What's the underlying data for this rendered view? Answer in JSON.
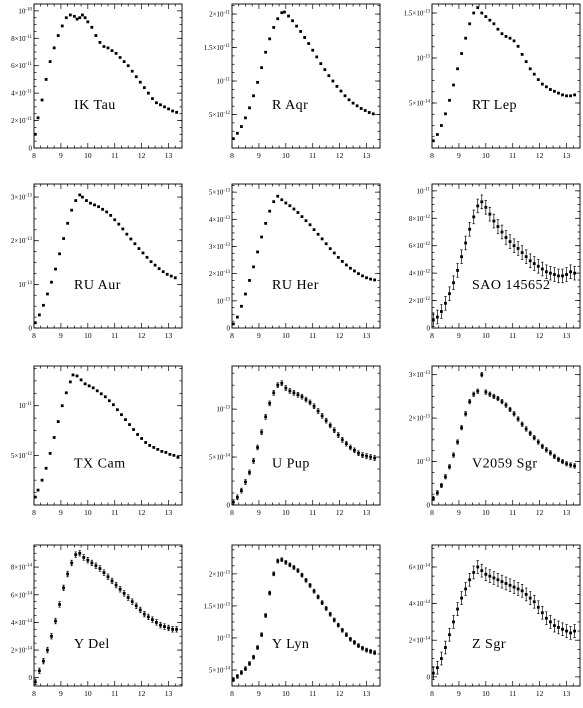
{
  "chart_data": [
    {
      "type": "scatter",
      "name": "IK Tau",
      "xlim": [
        8,
        13.5
      ],
      "ylim": [
        0,
        1.05e-10
      ],
      "xticks": [
        8,
        9,
        10,
        11,
        12,
        13
      ],
      "yticks": [
        0,
        2e-11,
        4e-11,
        6e-11,
        8e-11,
        1e-10
      ],
      "ytick_labels": [
        "0",
        "2×10⁻¹¹",
        "4×10⁻¹¹",
        "6×10⁻¹¹",
        "8×10⁻¹¹",
        "10⁻¹⁰"
      ],
      "err": 0,
      "x": [
        8.05,
        8.15,
        8.3,
        8.45,
        8.6,
        8.75,
        8.9,
        9.05,
        9.2,
        9.35,
        9.5,
        9.6,
        9.7,
        9.8,
        9.9,
        10.0,
        10.15,
        10.3,
        10.45,
        10.6,
        10.75,
        10.9,
        11.05,
        11.2,
        11.35,
        11.5,
        11.65,
        11.8,
        11.95,
        12.1,
        12.25,
        12.4,
        12.55,
        12.7,
        12.85,
        13.0,
        13.15,
        13.3
      ],
      "y": [
        1e-11,
        2.2e-11,
        3.5e-11,
        5e-11,
        6.3e-11,
        7.3e-11,
        8.2e-11,
        8.9e-11,
        9.5e-11,
        9.7e-11,
        9.6e-11,
        9.4e-11,
        9.5e-11,
        9.7e-11,
        9.5e-11,
        9.2e-11,
        8.8e-11,
        8.2e-11,
        7.7e-11,
        7.4e-11,
        7.3e-11,
        7.1e-11,
        6.9e-11,
        6.6e-11,
        6.3e-11,
        6e-11,
        5.6e-11,
        5.2e-11,
        4.8e-11,
        4.4e-11,
        4e-11,
        3.6e-11,
        3.3e-11,
        3.15e-11,
        3e-11,
        2.85e-11,
        2.7e-11,
        2.6e-11
      ]
    },
    {
      "type": "scatter",
      "name": "R Aqr",
      "xlim": [
        8,
        13.5
      ],
      "ylim": [
        0,
        2.15e-11
      ],
      "xticks": [
        8,
        9,
        10,
        11,
        12,
        13
      ],
      "yticks": [
        5e-12,
        1e-11,
        1.5e-11,
        2e-11
      ],
      "ytick_labels": [
        "5×10⁻¹²",
        "10⁻¹¹",
        "1.5×10⁻¹¹",
        "2×10⁻¹¹"
      ],
      "err": 0,
      "x": [
        8.05,
        8.2,
        8.35,
        8.5,
        8.65,
        8.8,
        8.95,
        9.1,
        9.25,
        9.4,
        9.55,
        9.7,
        9.85,
        9.95,
        10.1,
        10.25,
        10.4,
        10.55,
        10.7,
        10.85,
        11.0,
        11.15,
        11.3,
        11.45,
        11.6,
        11.75,
        11.9,
        12.05,
        12.2,
        12.35,
        12.5,
        12.65,
        12.8,
        12.95,
        13.1,
        13.25
      ],
      "y": [
        1.4e-12,
        2.2e-12,
        3.2e-12,
        4.5e-12,
        6e-12,
        7.8e-12,
        9.8e-12,
        1.2e-11,
        1.43e-11,
        1.63e-11,
        1.8e-11,
        1.93e-11,
        2.02e-11,
        2.03e-11,
        1.97e-11,
        1.9e-11,
        1.82e-11,
        1.74e-11,
        1.65e-11,
        1.56e-11,
        1.46e-11,
        1.36e-11,
        1.26e-11,
        1.17e-11,
        1.08e-11,
        1e-11,
        9.2e-12,
        8.5e-12,
        7.8e-12,
        7.2e-12,
        6.7e-12,
        6.3e-12,
        5.9e-12,
        5.6e-12,
        5.3e-12,
        5.1e-12
      ]
    },
    {
      "type": "scatter",
      "name": "RT Lep",
      "xlim": [
        8,
        13.5
      ],
      "ylim": [
        0,
        1.6e-13
      ],
      "xticks": [
        8,
        9,
        10,
        11,
        12,
        13
      ],
      "yticks": [
        5e-14,
        1e-13,
        1.5e-13
      ],
      "ytick_labels": [
        "5×10⁻¹⁴",
        "10⁻¹³",
        "1.5×10⁻¹³"
      ],
      "err": 0,
      "x": [
        8.05,
        8.2,
        8.35,
        8.5,
        8.65,
        8.8,
        8.95,
        9.1,
        9.25,
        9.4,
        9.55,
        9.7,
        9.85,
        10.0,
        10.15,
        10.3,
        10.45,
        10.6,
        10.75,
        10.9,
        11.05,
        11.2,
        11.35,
        11.5,
        11.65,
        11.8,
        11.95,
        12.1,
        12.25,
        12.4,
        12.55,
        12.7,
        12.85,
        13.0,
        13.15,
        13.3
      ],
      "y": [
        8e-15,
        1.5e-14,
        2.5e-14,
        3.8e-14,
        5.3e-14,
        7e-14,
        8.8e-14,
        1.05e-13,
        1.22e-13,
        1.38e-13,
        1.5e-13,
        1.56e-13,
        1.5e-13,
        1.46e-13,
        1.42e-13,
        1.38e-13,
        1.32e-13,
        1.27e-13,
        1.24e-13,
        1.22e-13,
        1.19e-13,
        1.13e-13,
        1.04e-13,
        9.6e-14,
        8.8e-14,
        8.2e-14,
        7.6e-14,
        7.1e-14,
        6.8e-14,
        6.5e-14,
        6.3e-14,
        6.1e-14,
        5.9e-14,
        5.8e-14,
        5.8e-14,
        5.9e-14
      ]
    },
    {
      "type": "scatter",
      "name": "RU Aur",
      "xlim": [
        8,
        13.5
      ],
      "ylim": [
        0,
        3.3e-13
      ],
      "xticks": [
        8,
        9,
        10,
        11,
        12,
        13
      ],
      "yticks": [
        0,
        1e-13,
        2e-13,
        3e-13
      ],
      "ytick_labels": [
        "0",
        "10⁻¹³",
        "2×10⁻¹³",
        "3×10⁻¹³"
      ],
      "err": 0,
      "x": [
        8.05,
        8.2,
        8.35,
        8.5,
        8.65,
        8.8,
        8.95,
        9.1,
        9.25,
        9.4,
        9.55,
        9.7,
        9.8,
        9.95,
        10.1,
        10.25,
        10.4,
        10.55,
        10.7,
        10.85,
        11.0,
        11.15,
        11.3,
        11.45,
        11.6,
        11.75,
        11.9,
        12.05,
        12.2,
        12.35,
        12.5,
        12.65,
        12.8,
        12.95,
        13.1,
        13.25
      ],
      "y": [
        1.2e-14,
        3e-14,
        5.2e-14,
        7.8e-14,
        1.05e-13,
        1.35e-13,
        1.7e-13,
        2.05e-13,
        2.4e-13,
        2.7e-13,
        2.92e-13,
        3.05e-13,
        3e-13,
        2.92e-13,
        2.86e-13,
        2.82e-13,
        2.78e-13,
        2.72e-13,
        2.66e-13,
        2.58e-13,
        2.48e-13,
        2.38e-13,
        2.27e-13,
        2.15e-13,
        2.04e-13,
        1.93e-13,
        1.82e-13,
        1.72e-13,
        1.62e-13,
        1.52e-13,
        1.44e-13,
        1.36e-13,
        1.29e-13,
        1.23e-13,
        1.19e-13,
        1.15e-13
      ]
    },
    {
      "type": "scatter",
      "name": "RU Her",
      "xlim": [
        8,
        13.5
      ],
      "ylim": [
        0,
        5.3e-13
      ],
      "xticks": [
        8,
        9,
        10,
        11,
        12,
        13
      ],
      "yticks": [
        0,
        1e-13,
        2e-13,
        3e-13,
        4e-13,
        5e-13
      ],
      "ytick_labels": [
        "0",
        "10⁻¹³",
        "2×10⁻¹³",
        "3×10⁻¹³",
        "4×10⁻¹³",
        "5×10⁻¹³"
      ],
      "err": 0,
      "x": [
        8.05,
        8.2,
        8.35,
        8.5,
        8.65,
        8.8,
        8.95,
        9.1,
        9.25,
        9.4,
        9.55,
        9.7,
        9.85,
        10.0,
        10.15,
        10.3,
        10.45,
        10.6,
        10.75,
        10.9,
        11.05,
        11.2,
        11.35,
        11.5,
        11.65,
        11.8,
        11.95,
        12.1,
        12.25,
        12.4,
        12.55,
        12.7,
        12.85,
        13.0,
        13.15,
        13.3
      ],
      "y": [
        1.5e-14,
        4e-14,
        8e-14,
        1.25e-13,
        1.75e-13,
        2.25e-13,
        2.8e-13,
        3.35e-13,
        3.85e-13,
        4.3e-13,
        4.65e-13,
        4.85e-13,
        4.72e-13,
        4.6e-13,
        4.5e-13,
        4.38e-13,
        4.25e-13,
        4.1e-13,
        3.95e-13,
        3.8e-13,
        3.62e-13,
        3.45e-13,
        3.28e-13,
        3.1e-13,
        2.92e-13,
        2.76e-13,
        2.6e-13,
        2.45e-13,
        2.32e-13,
        2.2e-13,
        2.1e-13,
        2e-13,
        1.92e-13,
        1.85e-13,
        1.8e-13,
        1.77e-13
      ]
    },
    {
      "type": "scatter",
      "name": "SAO 145652",
      "xlim": [
        8,
        13.5
      ],
      "ylim": [
        0,
        1.05e-11
      ],
      "xticks": [
        8,
        9,
        10,
        11,
        12,
        13
      ],
      "yticks": [
        0,
        2e-12,
        4e-12,
        6e-12,
        8e-12,
        1e-11
      ],
      "ytick_labels": [
        "0",
        "2×10⁻¹²",
        "4×10⁻¹²",
        "6×10⁻¹²",
        "8×10⁻¹²",
        "10⁻¹¹"
      ],
      "err": 5e-13,
      "x": [
        8.05,
        8.2,
        8.35,
        8.5,
        8.65,
        8.8,
        8.95,
        9.1,
        9.25,
        9.4,
        9.55,
        9.7,
        9.85,
        10.0,
        10.15,
        10.3,
        10.45,
        10.6,
        10.75,
        10.9,
        11.05,
        11.2,
        11.35,
        11.5,
        11.65,
        11.8,
        11.95,
        12.1,
        12.25,
        12.4,
        12.55,
        12.7,
        12.85,
        13.0,
        13.15,
        13.3
      ],
      "y": [
        6e-13,
        8e-13,
        1.2e-12,
        1.8e-12,
        2.5e-12,
        3.3e-12,
        4.2e-12,
        5.2e-12,
        6.2e-12,
        7.2e-12,
        8.1e-12,
        8.9e-12,
        9.2e-12,
        8.8e-12,
        8.3e-12,
        7.8e-12,
        7.4e-12,
        7e-12,
        6.6e-12,
        6.3e-12,
        6e-12,
        5.8e-12,
        5.5e-12,
        5.2e-12,
        4.9e-12,
        4.7e-12,
        4.5e-12,
        4.3e-12,
        4.1e-12,
        4e-12,
        3.9e-12,
        3.8e-12,
        3.8e-12,
        3.9e-12,
        4.1e-12,
        4e-12
      ]
    },
    {
      "type": "scatter",
      "name": "TX Cam",
      "xlim": [
        8,
        13.5
      ],
      "ylim": [
        0,
        1.4e-11
      ],
      "xticks": [
        8,
        9,
        10,
        11,
        12,
        13
      ],
      "yticks": [
        5e-12,
        1e-11
      ],
      "ytick_labels": [
        "5×10⁻¹²",
        "10⁻¹¹"
      ],
      "err": 0,
      "x": [
        8.05,
        8.15,
        8.3,
        8.45,
        8.6,
        8.75,
        8.9,
        9.05,
        9.2,
        9.35,
        9.45,
        9.6,
        9.75,
        9.9,
        10.05,
        10.2,
        10.35,
        10.5,
        10.65,
        10.8,
        10.95,
        11.1,
        11.25,
        11.4,
        11.55,
        11.7,
        11.85,
        12.0,
        12.15,
        12.3,
        12.45,
        12.6,
        12.75,
        12.9,
        13.05,
        13.2,
        13.35
      ],
      "y": [
        8e-13,
        1.5e-12,
        2.5e-12,
        3.7e-12,
        5.2e-12,
        6.8e-12,
        8.4e-12,
        1e-11,
        1.13e-11,
        1.24e-11,
        1.31e-11,
        1.3e-11,
        1.26e-11,
        1.22e-11,
        1.2e-11,
        1.18e-11,
        1.15e-11,
        1.12e-11,
        1.09e-11,
        1.05e-11,
        1.01e-11,
        9.6e-12,
        9.1e-12,
        8.6e-12,
        8.1e-12,
        7.6e-12,
        7.1e-12,
        6.7e-12,
        6.3e-12,
        6e-12,
        5.8e-12,
        5.6e-12,
        5.4e-12,
        5.3e-12,
        5.1e-12,
        5e-12,
        4.8e-12
      ]
    },
    {
      "type": "scatter",
      "name": "U Pup",
      "xlim": [
        8,
        13.5
      ],
      "ylim": [
        0,
        1.45e-13
      ],
      "xticks": [
        8,
        9,
        10,
        11,
        12,
        13
      ],
      "yticks": [
        0,
        5e-14,
        1e-13
      ],
      "ytick_labels": [
        "0",
        "5×10⁻¹⁴",
        "10⁻¹³"
      ],
      "err": 2.5e-15,
      "x": [
        8.05,
        8.2,
        8.35,
        8.5,
        8.65,
        8.8,
        8.95,
        9.1,
        9.25,
        9.4,
        9.55,
        9.7,
        9.85,
        10.0,
        10.15,
        10.3,
        10.45,
        10.6,
        10.75,
        10.9,
        11.05,
        11.2,
        11.35,
        11.5,
        11.65,
        11.8,
        11.95,
        12.1,
        12.25,
        12.4,
        12.55,
        12.7,
        12.85,
        13.0,
        13.15,
        13.3
      ],
      "y": [
        3e-15,
        8e-15,
        1.5e-14,
        2.4e-14,
        3.4e-14,
        4.6e-14,
        6e-14,
        7.6e-14,
        9.2e-14,
        1.06e-13,
        1.17e-13,
        1.25e-13,
        1.27e-13,
        1.22e-13,
        1.19e-13,
        1.17e-13,
        1.15e-13,
        1.13e-13,
        1.1e-13,
        1.07e-13,
        1.03e-13,
        9.8e-14,
        9.3e-14,
        8.8e-14,
        8.3e-14,
        7.8e-14,
        7.3e-14,
        6.8e-14,
        6.4e-14,
        6e-14,
        5.7e-14,
        5.4e-14,
        5.2e-14,
        5.1e-14,
        5e-14,
        4.9e-14
      ]
    },
    {
      "type": "scatter",
      "name": "V2059 Sgr",
      "xlim": [
        8,
        13.5
      ],
      "ylim": [
        0,
        3.2e-13
      ],
      "xticks": [
        8,
        9,
        10,
        11,
        12,
        13
      ],
      "yticks": [
        0,
        1e-13,
        2e-13,
        3e-13
      ],
      "ytick_labels": [
        "0",
        "10⁻¹³",
        "2×10⁻¹³",
        "3×10⁻¹³"
      ],
      "err": 5e-15,
      "x": [
        8.05,
        8.2,
        8.35,
        8.5,
        8.65,
        8.8,
        8.95,
        9.1,
        9.25,
        9.4,
        9.55,
        9.7,
        9.85,
        10.0,
        10.15,
        10.3,
        10.45,
        10.6,
        10.75,
        10.9,
        11.05,
        11.2,
        11.35,
        11.5,
        11.65,
        11.8,
        11.95,
        12.1,
        12.25,
        12.4,
        12.55,
        12.7,
        12.85,
        13.0,
        13.15,
        13.3
      ],
      "y": [
        1.5e-14,
        2.8e-14,
        4.5e-14,
        6.5e-14,
        8.8e-14,
        1.15e-13,
        1.45e-13,
        1.78e-13,
        2.1e-13,
        2.38e-13,
        2.55e-13,
        2.62e-13,
        3e-13,
        2.6e-13,
        2.55e-13,
        2.5e-13,
        2.45e-13,
        2.38e-13,
        2.3e-13,
        2.2e-13,
        2.1e-13,
        1.98e-13,
        1.86e-13,
        1.75e-13,
        1.65e-13,
        1.55e-13,
        1.45e-13,
        1.35e-13,
        1.27e-13,
        1.2e-13,
        1.12e-13,
        1.05e-13,
        1e-13,
        9.5e-14,
        9.2e-14,
        9e-14
      ]
    },
    {
      "type": "scatter",
      "name": "Y Del",
      "xlim": [
        8,
        13.5
      ],
      "ylim": [
        -6e-15,
        9.6e-14
      ],
      "xticks": [
        8,
        9,
        10,
        11,
        12,
        13
      ],
      "yticks": [
        0,
        2e-14,
        4e-14,
        6e-14,
        8e-14
      ],
      "ytick_labels": [
        "0",
        "2×10⁻¹⁴",
        "4×10⁻¹⁴",
        "6×10⁻¹⁴",
        "8×10⁻¹⁴"
      ],
      "err": 2e-15,
      "x": [
        8.05,
        8.2,
        8.35,
        8.5,
        8.65,
        8.8,
        8.95,
        9.1,
        9.25,
        9.4,
        9.55,
        9.7,
        9.85,
        10.0,
        10.15,
        10.3,
        10.45,
        10.6,
        10.75,
        10.9,
        11.05,
        11.2,
        11.35,
        11.5,
        11.65,
        11.8,
        11.95,
        12.1,
        12.25,
        12.4,
        12.55,
        12.7,
        12.85,
        13.0,
        13.15,
        13.3
      ],
      "y": [
        -3e-15,
        5e-15,
        1.2e-14,
        2e-14,
        3e-14,
        4.1e-14,
        5.3e-14,
        6.5e-14,
        7.5e-14,
        8.3e-14,
        8.9e-14,
        9e-14,
        8.7e-14,
        8.5e-14,
        8.3e-14,
        8.1e-14,
        7.9e-14,
        7.6e-14,
        7.3e-14,
        7e-14,
        6.7e-14,
        6.4e-14,
        6.1e-14,
        5.8e-14,
        5.5e-14,
        5.2e-14,
        4.9e-14,
        4.6e-14,
        4.4e-14,
        4.2e-14,
        4e-14,
        3.8e-14,
        3.7e-14,
        3.6e-14,
        3.5e-14,
        3.5e-14
      ]
    },
    {
      "type": "scatter",
      "name": "Y Lyn",
      "xlim": [
        8,
        13.5
      ],
      "ylim": [
        2.5e-14,
        2.45e-13
      ],
      "xticks": [
        8,
        9,
        10,
        11,
        12,
        13
      ],
      "yticks": [
        5e-14,
        1e-13,
        1.5e-13,
        2e-13
      ],
      "ytick_labels": [
        "5×10⁻¹⁴",
        "10⁻¹³",
        "1.5×10⁻¹³",
        "2×10⁻¹³"
      ],
      "err": 3e-15,
      "x": [
        8.05,
        8.2,
        8.35,
        8.5,
        8.65,
        8.8,
        8.95,
        9.1,
        9.25,
        9.4,
        9.55,
        9.7,
        9.85,
        10.0,
        10.15,
        10.3,
        10.45,
        10.6,
        10.75,
        10.9,
        11.05,
        11.2,
        11.35,
        11.5,
        11.65,
        11.8,
        11.95,
        12.1,
        12.25,
        12.4,
        12.55,
        12.7,
        12.85,
        13.0,
        13.15,
        13.3
      ],
      "y": [
        3.5e-14,
        4e-14,
        4.6e-14,
        5.2e-14,
        6e-14,
        7e-14,
        8.5e-14,
        1.05e-13,
        1.35e-13,
        1.7e-13,
        2e-13,
        2.2e-13,
        2.22e-13,
        2.18e-13,
        2.14e-13,
        2.1e-13,
        2.05e-13,
        1.98e-13,
        1.9e-13,
        1.82e-13,
        1.73e-13,
        1.64e-13,
        1.55e-13,
        1.46e-13,
        1.37e-13,
        1.28e-13,
        1.2e-13,
        1.12e-13,
        1.05e-13,
        9.8e-14,
        9.3e-14,
        8.8e-14,
        8.4e-14,
        8.1e-14,
        7.9e-14,
        7.7e-14
      ]
    },
    {
      "type": "scatter",
      "name": "Z Sgr",
      "xlim": [
        8,
        13.5
      ],
      "ylim": [
        -5e-15,
        7.2e-14
      ],
      "xticks": [
        8,
        9,
        10,
        11,
        12,
        13
      ],
      "yticks": [
        0,
        2e-14,
        4e-14,
        6e-14
      ],
      "ytick_labels": [
        "0",
        "2×10⁻¹⁴",
        "4×10⁻¹⁴",
        "6×10⁻¹⁴"
      ],
      "err": 3.5e-15,
      "x": [
        8.05,
        8.2,
        8.35,
        8.5,
        8.65,
        8.8,
        8.95,
        9.1,
        9.25,
        9.4,
        9.55,
        9.7,
        9.85,
        10.0,
        10.15,
        10.3,
        10.45,
        10.6,
        10.75,
        10.9,
        11.05,
        11.2,
        11.35,
        11.5,
        11.65,
        11.8,
        11.95,
        12.1,
        12.25,
        12.4,
        12.55,
        12.7,
        12.85,
        13.0,
        13.15,
        13.3
      ],
      "y": [
        2e-15,
        5e-15,
        1e-14,
        1.6e-14,
        2.3e-14,
        3e-14,
        3.7e-14,
        4.3e-14,
        4.8e-14,
        5.3e-14,
        5.7e-14,
        6e-14,
        5.8e-14,
        5.6e-14,
        5.5e-14,
        5.4e-14,
        5.3e-14,
        5.2e-14,
        5.1e-14,
        5e-14,
        4.9e-14,
        4.8e-14,
        4.7e-14,
        4.5e-14,
        4.3e-14,
        4.1e-14,
        3.8e-14,
        3.5e-14,
        3.2e-14,
        3e-14,
        2.8e-14,
        2.7e-14,
        2.6e-14,
        2.5e-14,
        2.4e-14,
        2.5e-14
      ]
    }
  ]
}
